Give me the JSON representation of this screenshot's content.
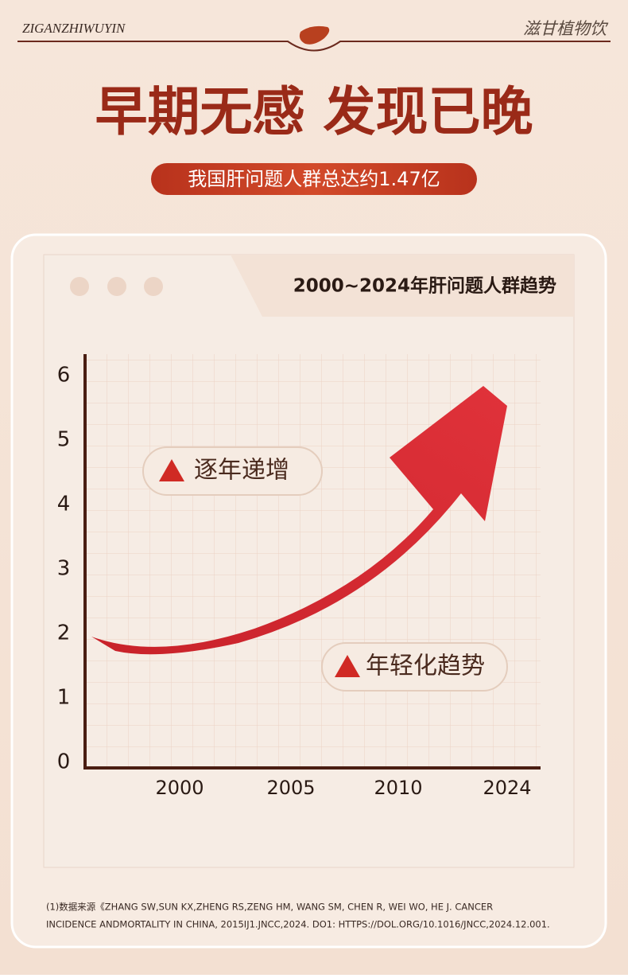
{
  "header": {
    "brand_latin": "ZIGANZHIWUYIN",
    "brand_cn": "滋甘植物饮"
  },
  "title": "早期无感 发现已晚",
  "subtitle": "我国肝问题人群总达约1.47亿",
  "chart": {
    "title": "2000~2024年肝问题人群趋势",
    "ylim": [
      0,
      6
    ],
    "yticks": [
      0,
      1,
      2,
      3,
      4,
      5,
      6
    ],
    "categories": [
      "2000",
      "2005",
      "2010",
      "2024"
    ],
    "badges": [
      "逐年递增",
      "年轻化趋势"
    ]
  },
  "footnote": [
    "(1)数据来源《ZHANG SW,SUN KX,ZHENG RS,ZENG HM, WANG SM, CHEN R, WEI WO, HE J. CANCER",
    "INCIDENCE ANDMORTALITY IN CHINA, 2015IJ1.JNCC,2024. DO1: HTTPS://DOL.ORG/10.1016/JNCC,2024.12.001."
  ]
}
